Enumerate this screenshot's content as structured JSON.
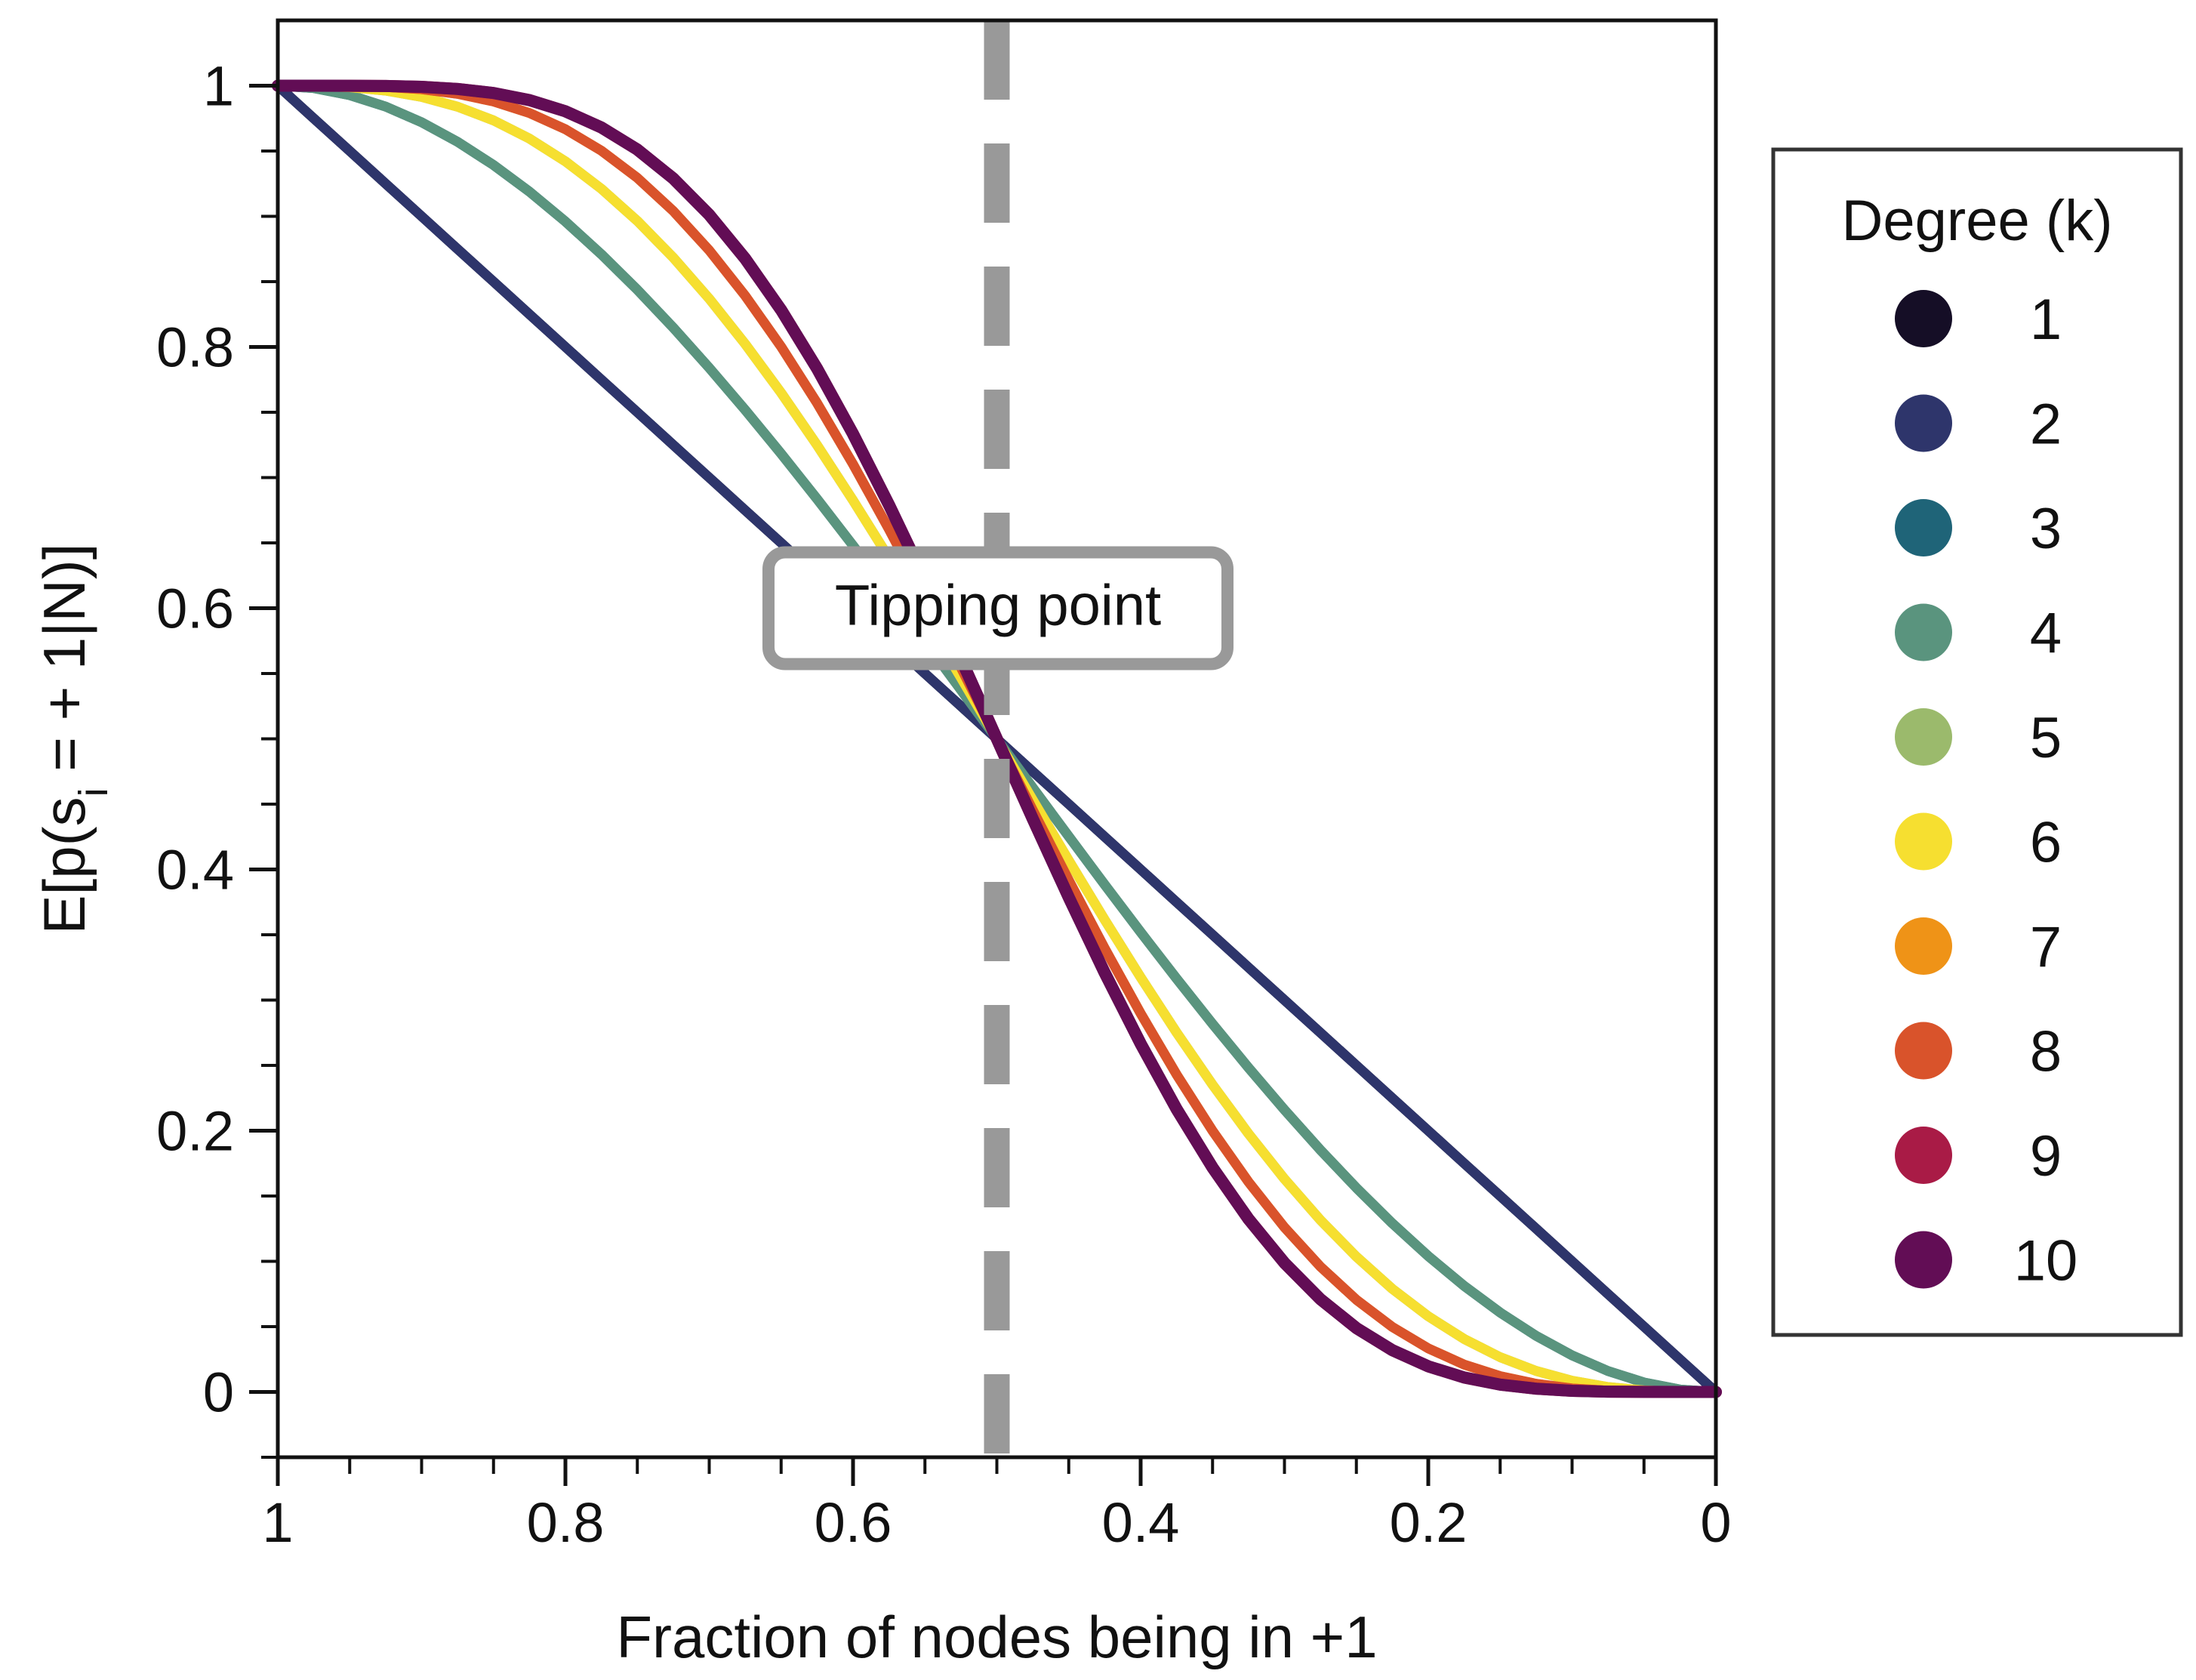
{
  "chart_data": {
    "type": "line",
    "title": "",
    "xlabel": "Fraction of nodes being in +1",
    "ylabel": "E[p(s_i = +1|N)]",
    "ylabel_parts": {
      "prefix": "E[p(s",
      "subscript": "i",
      "suffix": " = + 1|N)]"
    },
    "xlim": [
      1,
      0
    ],
    "ylim": [
      -0.05,
      1.05
    ],
    "x_ticks": [
      1,
      0.8,
      0.6,
      0.4,
      0.2,
      0
    ],
    "x_tick_labels": [
      "1",
      "0.8",
      "0.6",
      "0.4",
      "0.2",
      "0"
    ],
    "y_ticks": [
      0,
      0.2,
      0.4,
      0.6,
      0.8,
      1
    ],
    "y_tick_labels": [
      "0",
      "0.2",
      "0.4",
      "0.6",
      "0.8",
      "1"
    ],
    "grid": false,
    "tipping_point": {
      "x": 0.5,
      "label": "Tipping point",
      "y": 0.6,
      "color": "#999999"
    },
    "legend": {
      "title": "Degree (k)",
      "placement": "right-outside"
    },
    "x_samples": [
      0,
      0.025,
      0.05,
      0.075,
      0.1,
      0.125,
      0.15,
      0.175,
      0.2,
      0.225,
      0.25,
      0.275,
      0.3,
      0.325,
      0.35,
      0.375,
      0.4,
      0.425,
      0.45,
      0.475,
      0.5,
      0.525,
      0.55,
      0.575,
      0.6,
      0.625,
      0.65,
      0.675,
      0.7,
      0.725,
      0.75,
      0.775,
      0.8,
      0.825,
      0.85,
      0.875,
      0.9,
      0.925,
      0.95,
      0.975,
      1
    ],
    "series": [
      {
        "name": "1",
        "k": 1,
        "color": "#150e26"
      },
      {
        "name": "2",
        "k": 2,
        "color": "#2e356b"
      },
      {
        "name": "3",
        "k": 3,
        "color": "#1f6478"
      },
      {
        "name": "4",
        "k": 4,
        "color": "#5a947e"
      },
      {
        "name": "5",
        "k": 5,
        "color": "#9bba6c"
      },
      {
        "name": "6",
        "k": 6,
        "color": "#f6df30"
      },
      {
        "name": "7",
        "k": 7,
        "color": "#ef9317"
      },
      {
        "name": "8",
        "k": 8,
        "color": "#d9532b"
      },
      {
        "name": "9",
        "k": 9,
        "color": "#a91b46"
      },
      {
        "name": "10",
        "k": 10,
        "color": "#620d55"
      }
    ]
  }
}
